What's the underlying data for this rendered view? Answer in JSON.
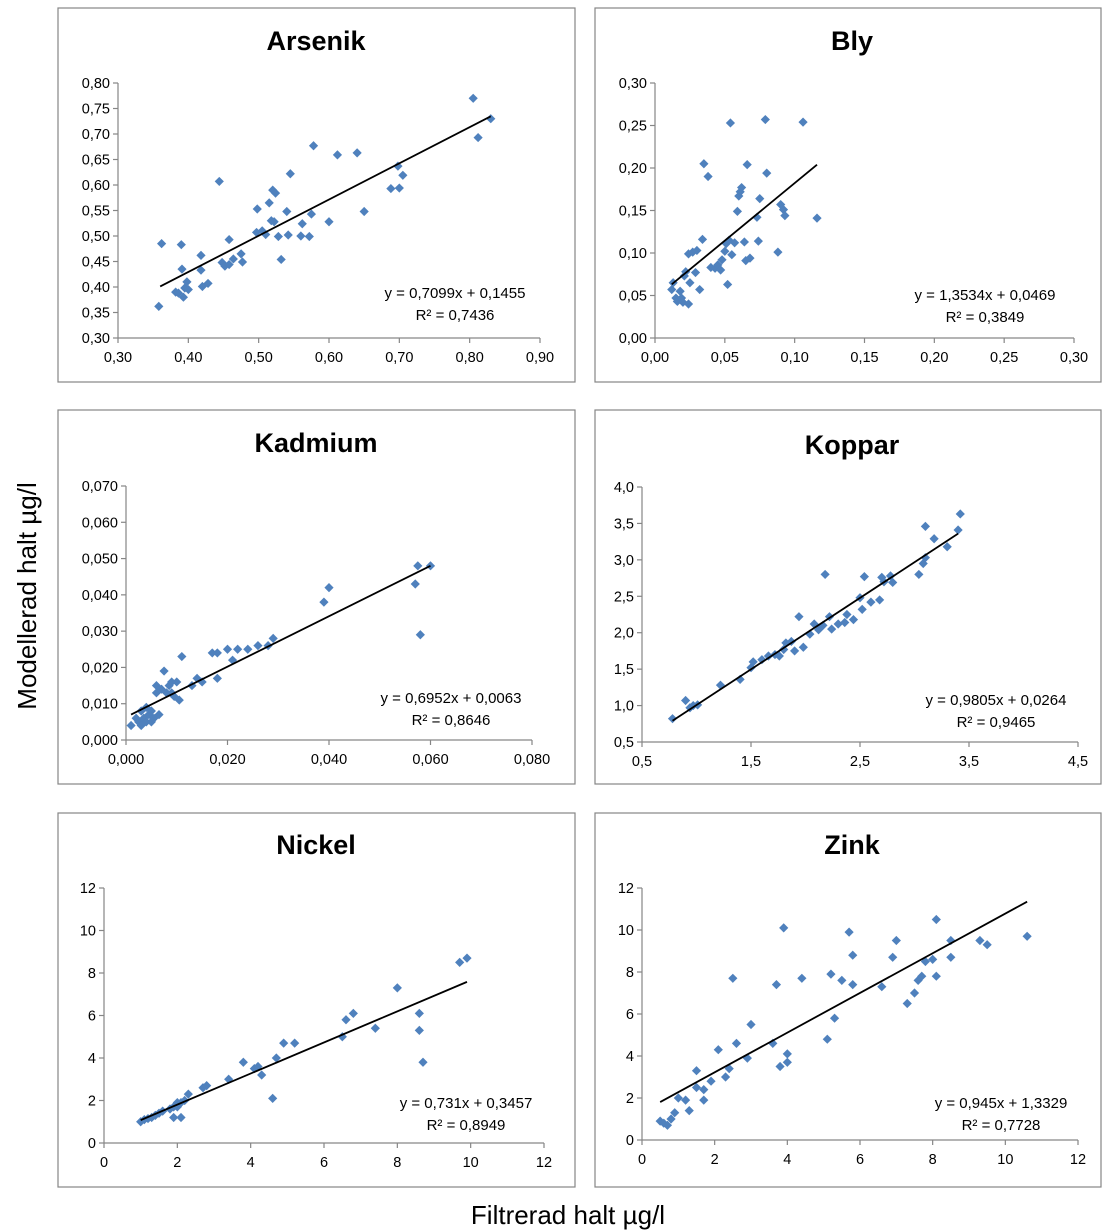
{
  "figure": {
    "ylabel": "Modellerad halt µg/l",
    "xlabel": "Filtrerad halt µg/l"
  },
  "colors": {
    "marker": "#4f81bd",
    "trendline": "#000000",
    "axis": "#868686",
    "frame": "#868686",
    "text": "#000000"
  },
  "chart_data": [
    {
      "type": "scatter",
      "title": "Arsenik",
      "xlim": [
        0.3,
        0.9
      ],
      "ylim": [
        0.3,
        0.8
      ],
      "xticks": [
        "0,30",
        "0,40",
        "0,50",
        "0,60",
        "0,70",
        "0,80",
        "0,90"
      ],
      "yticks": [
        "0,30",
        "0,35",
        "0,40",
        "0,45",
        "0,50",
        "0,55",
        "0,60",
        "0,65",
        "0,70",
        "0,75",
        "0,80"
      ],
      "grid": false,
      "equation": "y = 0,7099x + 0,1455",
      "r2_label": "R² = 0,7436",
      "trendline": {
        "slope": 0.7099,
        "intercept": 0.1455,
        "x_range": [
          0.36,
          0.83
        ]
      },
      "points": [
        [
          0.358,
          0.362
        ],
        [
          0.362,
          0.485
        ],
        [
          0.382,
          0.39
        ],
        [
          0.386,
          0.388
        ],
        [
          0.39,
          0.483
        ],
        [
          0.391,
          0.435
        ],
        [
          0.393,
          0.38
        ],
        [
          0.395,
          0.398
        ],
        [
          0.398,
          0.41
        ],
        [
          0.4,
          0.395
        ],
        [
          0.418,
          0.462
        ],
        [
          0.418,
          0.433
        ],
        [
          0.42,
          0.401
        ],
        [
          0.428,
          0.407
        ],
        [
          0.444,
          0.607
        ],
        [
          0.448,
          0.448
        ],
        [
          0.452,
          0.441
        ],
        [
          0.458,
          0.444
        ],
        [
          0.458,
          0.493
        ],
        [
          0.464,
          0.455
        ],
        [
          0.475,
          0.465
        ],
        [
          0.477,
          0.449
        ],
        [
          0.497,
          0.507
        ],
        [
          0.498,
          0.553
        ],
        [
          0.505,
          0.51
        ],
        [
          0.51,
          0.503
        ],
        [
          0.515,
          0.565
        ],
        [
          0.518,
          0.53
        ],
        [
          0.52,
          0.59
        ],
        [
          0.522,
          0.528
        ],
        [
          0.524,
          0.584
        ],
        [
          0.528,
          0.499
        ],
        [
          0.532,
          0.454
        ],
        [
          0.54,
          0.548
        ],
        [
          0.542,
          0.502
        ],
        [
          0.545,
          0.622
        ],
        [
          0.56,
          0.5
        ],
        [
          0.562,
          0.524
        ],
        [
          0.572,
          0.499
        ],
        [
          0.575,
          0.543
        ],
        [
          0.578,
          0.677
        ],
        [
          0.6,
          0.528
        ],
        [
          0.612,
          0.659
        ],
        [
          0.64,
          0.663
        ],
        [
          0.65,
          0.548
        ],
        [
          0.688,
          0.593
        ],
        [
          0.698,
          0.637
        ],
        [
          0.7,
          0.594
        ],
        [
          0.705,
          0.619
        ],
        [
          0.805,
          0.77
        ],
        [
          0.812,
          0.693
        ],
        [
          0.83,
          0.73
        ]
      ]
    },
    {
      "type": "scatter",
      "title": "Bly",
      "xlim": [
        0.0,
        0.3
      ],
      "ylim": [
        0.0,
        0.3
      ],
      "xticks": [
        "0,00",
        "0,05",
        "0,10",
        "0,15",
        "0,20",
        "0,25",
        "0,30"
      ],
      "yticks": [
        "0,00",
        "0,05",
        "0,10",
        "0,15",
        "0,20",
        "0,25",
        "0,30"
      ],
      "grid": false,
      "equation": "y = 1,3534x + 0,0469",
      "r2_label": "R² = 0,3849",
      "trendline": {
        "slope": 1.3534,
        "intercept": 0.0469,
        "x_range": [
          0.012,
          0.116
        ]
      },
      "points": [
        [
          0.012,
          0.057
        ],
        [
          0.013,
          0.065
        ],
        [
          0.015,
          0.047
        ],
        [
          0.016,
          0.043
        ],
        [
          0.018,
          0.055
        ],
        [
          0.019,
          0.047
        ],
        [
          0.02,
          0.042
        ],
        [
          0.021,
          0.073
        ],
        [
          0.022,
          0.078
        ],
        [
          0.024,
          0.04
        ],
        [
          0.024,
          0.099
        ],
        [
          0.025,
          0.065
        ],
        [
          0.027,
          0.101
        ],
        [
          0.029,
          0.077
        ],
        [
          0.03,
          0.103
        ],
        [
          0.032,
          0.057
        ],
        [
          0.034,
          0.116
        ],
        [
          0.035,
          0.205
        ],
        [
          0.038,
          0.19
        ],
        [
          0.04,
          0.083
        ],
        [
          0.043,
          0.082
        ],
        [
          0.045,
          0.086
        ],
        [
          0.047,
          0.08
        ],
        [
          0.048,
          0.092
        ],
        [
          0.05,
          0.102
        ],
        [
          0.051,
          0.111
        ],
        [
          0.052,
          0.063
        ],
        [
          0.053,
          0.115
        ],
        [
          0.054,
          0.253
        ],
        [
          0.055,
          0.098
        ],
        [
          0.057,
          0.112
        ],
        [
          0.059,
          0.149
        ],
        [
          0.06,
          0.167
        ],
        [
          0.061,
          0.172
        ],
        [
          0.062,
          0.177
        ],
        [
          0.064,
          0.113
        ],
        [
          0.065,
          0.091
        ],
        [
          0.066,
          0.204
        ],
        [
          0.068,
          0.094
        ],
        [
          0.073,
          0.142
        ],
        [
          0.074,
          0.114
        ],
        [
          0.075,
          0.164
        ],
        [
          0.079,
          0.257
        ],
        [
          0.08,
          0.194
        ],
        [
          0.088,
          0.101
        ],
        [
          0.09,
          0.157
        ],
        [
          0.092,
          0.151
        ],
        [
          0.093,
          0.144
        ],
        [
          0.106,
          0.254
        ],
        [
          0.116,
          0.141
        ]
      ]
    },
    {
      "type": "scatter",
      "title": "Kadmium",
      "xlim": [
        0.0,
        0.08
      ],
      "ylim": [
        0.0,
        0.07
      ],
      "xticks": [
        "0,000",
        "0,020",
        "0,040",
        "0,060",
        "0,080"
      ],
      "yticks": [
        "0,000",
        "0,010",
        "0,020",
        "0,030",
        "0,040",
        "0,050",
        "0,060",
        "0,070"
      ],
      "grid": false,
      "equation": "y = 0,6952x + 0,0063",
      "r2_label": "R² = 0,8646",
      "trendline": {
        "slope": 0.6952,
        "intercept": 0.0063,
        "x_range": [
          0.001,
          0.06
        ]
      },
      "points": [
        [
          0.001,
          0.004
        ],
        [
          0.002,
          0.006
        ],
        [
          0.0025,
          0.005
        ],
        [
          0.003,
          0.008
        ],
        [
          0.003,
          0.004
        ],
        [
          0.0035,
          0.006
        ],
        [
          0.004,
          0.005
        ],
        [
          0.004,
          0.009
        ],
        [
          0.0045,
          0.007
        ],
        [
          0.005,
          0.005
        ],
        [
          0.005,
          0.008
        ],
        [
          0.0055,
          0.006
        ],
        [
          0.006,
          0.015
        ],
        [
          0.006,
          0.013
        ],
        [
          0.0065,
          0.007
        ],
        [
          0.007,
          0.014
        ],
        [
          0.0075,
          0.019
        ],
        [
          0.008,
          0.013
        ],
        [
          0.0085,
          0.015
        ],
        [
          0.009,
          0.016
        ],
        [
          0.009,
          0.013
        ],
        [
          0.0095,
          0.012
        ],
        [
          0.01,
          0.016
        ],
        [
          0.0105,
          0.011
        ],
        [
          0.011,
          0.023
        ],
        [
          0.013,
          0.015
        ],
        [
          0.014,
          0.017
        ],
        [
          0.015,
          0.016
        ],
        [
          0.017,
          0.024
        ],
        [
          0.018,
          0.017
        ],
        [
          0.018,
          0.024
        ],
        [
          0.02,
          0.025
        ],
        [
          0.021,
          0.022
        ],
        [
          0.022,
          0.025
        ],
        [
          0.024,
          0.025
        ],
        [
          0.026,
          0.026
        ],
        [
          0.028,
          0.026
        ],
        [
          0.029,
          0.028
        ],
        [
          0.039,
          0.038
        ],
        [
          0.04,
          0.042
        ],
        [
          0.057,
          0.043
        ],
        [
          0.0575,
          0.048
        ],
        [
          0.058,
          0.029
        ],
        [
          0.06,
          0.048
        ]
      ]
    },
    {
      "type": "scatter",
      "title": "Koppar",
      "xlim": [
        0.5,
        4.5
      ],
      "ylim": [
        0.5,
        4.0
      ],
      "xticks": [
        "0,5",
        "1,5",
        "2,5",
        "3,5",
        "4,5"
      ],
      "yticks": [
        "0,5",
        "1,0",
        "1,5",
        "2,0",
        "2,5",
        "3,0",
        "3,5",
        "4,0"
      ],
      "grid": false,
      "equation": "y = 0,9805x + 0,0264",
      "r2_label": "R² = 0,9465",
      "trendline": {
        "slope": 0.9805,
        "intercept": 0.0264,
        "x_range": [
          0.78,
          3.4
        ]
      },
      "points": [
        [
          0.78,
          0.82
        ],
        [
          0.9,
          1.07
        ],
        [
          0.94,
          0.97
        ],
        [
          0.97,
          1.0
        ],
        [
          1.01,
          1.01
        ],
        [
          1.22,
          1.28
        ],
        [
          1.4,
          1.36
        ],
        [
          1.5,
          1.52
        ],
        [
          1.52,
          1.6
        ],
        [
          1.6,
          1.63
        ],
        [
          1.66,
          1.68
        ],
        [
          1.72,
          1.7
        ],
        [
          1.76,
          1.68
        ],
        [
          1.8,
          1.77
        ],
        [
          1.82,
          1.86
        ],
        [
          1.87,
          1.88
        ],
        [
          1.9,
          1.75
        ],
        [
          1.94,
          2.22
        ],
        [
          1.98,
          1.8
        ],
        [
          2.04,
          1.98
        ],
        [
          2.08,
          2.12
        ],
        [
          2.12,
          2.04
        ],
        [
          2.16,
          2.1
        ],
        [
          2.18,
          2.8
        ],
        [
          2.22,
          2.22
        ],
        [
          2.24,
          2.05
        ],
        [
          2.3,
          2.12
        ],
        [
          2.36,
          2.14
        ],
        [
          2.38,
          2.25
        ],
        [
          2.44,
          2.18
        ],
        [
          2.5,
          2.48
        ],
        [
          2.52,
          2.32
        ],
        [
          2.54,
          2.77
        ],
        [
          2.6,
          2.42
        ],
        [
          2.68,
          2.45
        ],
        [
          2.7,
          2.76
        ],
        [
          2.72,
          2.7
        ],
        [
          2.78,
          2.78
        ],
        [
          2.8,
          2.69
        ],
        [
          3.04,
          2.8
        ],
        [
          3.08,
          2.95
        ],
        [
          3.1,
          3.03
        ],
        [
          3.1,
          3.46
        ],
        [
          3.18,
          3.29
        ],
        [
          3.3,
          3.18
        ],
        [
          3.4,
          3.41
        ],
        [
          3.42,
          3.63
        ]
      ]
    },
    {
      "type": "scatter",
      "title": "Nickel",
      "xlim": [
        0,
        12
      ],
      "ylim": [
        0,
        12
      ],
      "xticks": [
        "0",
        "2",
        "4",
        "6",
        "8",
        "10",
        "12"
      ],
      "yticks": [
        "0",
        "2",
        "4",
        "6",
        "8",
        "10",
        "12"
      ],
      "grid": false,
      "equation": "y = 0,731x + 0,3457",
      "r2_label": "R² = 0,8949",
      "trendline": {
        "slope": 0.731,
        "intercept": 0.3457,
        "x_range": [
          1.0,
          9.9
        ]
      },
      "points": [
        [
          1.0,
          1.0
        ],
        [
          1.1,
          1.1
        ],
        [
          1.2,
          1.15
        ],
        [
          1.3,
          1.2
        ],
        [
          1.4,
          1.3
        ],
        [
          1.5,
          1.4
        ],
        [
          1.6,
          1.5
        ],
        [
          1.8,
          1.6
        ],
        [
          1.9,
          1.7
        ],
        [
          1.9,
          1.2
        ],
        [
          2.0,
          1.7
        ],
        [
          2.0,
          1.9
        ],
        [
          2.1,
          1.9
        ],
        [
          2.1,
          1.2
        ],
        [
          2.2,
          2.0
        ],
        [
          2.3,
          2.3
        ],
        [
          2.7,
          2.6
        ],
        [
          2.8,
          2.7
        ],
        [
          3.4,
          3.0
        ],
        [
          3.8,
          3.8
        ],
        [
          4.1,
          3.5
        ],
        [
          4.2,
          3.6
        ],
        [
          4.3,
          3.2
        ],
        [
          4.6,
          2.1
        ],
        [
          4.7,
          4.0
        ],
        [
          4.9,
          4.7
        ],
        [
          5.2,
          4.7
        ],
        [
          6.5,
          5.0
        ],
        [
          6.6,
          5.8
        ],
        [
          6.8,
          6.1
        ],
        [
          7.4,
          5.4
        ],
        [
          8.0,
          7.3
        ],
        [
          8.6,
          6.1
        ],
        [
          8.6,
          5.3
        ],
        [
          8.7,
          3.8
        ],
        [
          9.7,
          8.5
        ],
        [
          9.9,
          8.7
        ]
      ]
    },
    {
      "type": "scatter",
      "title": "Zink",
      "xlim": [
        0,
        12
      ],
      "ylim": [
        0,
        12
      ],
      "xticks": [
        "0",
        "2",
        "4",
        "6",
        "8",
        "10",
        "12"
      ],
      "yticks": [
        "0",
        "2",
        "4",
        "6",
        "8",
        "10",
        "12"
      ],
      "grid": false,
      "equation": "y = 0,945x + 1,3329",
      "r2_label": "R² = 0,7728",
      "trendline": {
        "slope": 0.945,
        "intercept": 1.3329,
        "x_range": [
          0.5,
          10.6
        ]
      },
      "points": [
        [
          0.5,
          0.9
        ],
        [
          0.6,
          0.8
        ],
        [
          0.7,
          0.7
        ],
        [
          0.8,
          1.0
        ],
        [
          0.9,
          1.3
        ],
        [
          1.0,
          2.0
        ],
        [
          1.2,
          1.9
        ],
        [
          1.3,
          1.4
        ],
        [
          1.5,
          3.3
        ],
        [
          1.5,
          2.5
        ],
        [
          1.7,
          1.9
        ],
        [
          1.7,
          2.4
        ],
        [
          1.9,
          2.8
        ],
        [
          2.1,
          4.3
        ],
        [
          2.3,
          3.0
        ],
        [
          2.4,
          3.4
        ],
        [
          2.5,
          7.7
        ],
        [
          2.6,
          4.6
        ],
        [
          2.9,
          3.9
        ],
        [
          3.0,
          5.5
        ],
        [
          3.6,
          4.6
        ],
        [
          3.7,
          7.4
        ],
        [
          3.8,
          3.5
        ],
        [
          3.9,
          10.1
        ],
        [
          4.0,
          3.7
        ],
        [
          4.0,
          4.1
        ],
        [
          4.4,
          7.7
        ],
        [
          5.1,
          4.8
        ],
        [
          5.2,
          7.9
        ],
        [
          5.3,
          5.8
        ],
        [
          5.5,
          7.6
        ],
        [
          5.7,
          9.9
        ],
        [
          5.8,
          8.8
        ],
        [
          5.8,
          7.4
        ],
        [
          6.6,
          7.3
        ],
        [
          6.9,
          8.7
        ],
        [
          7.0,
          9.5
        ],
        [
          7.3,
          6.5
        ],
        [
          7.5,
          7.0
        ],
        [
          7.6,
          7.6
        ],
        [
          7.7,
          7.8
        ],
        [
          7.8,
          8.5
        ],
        [
          8.0,
          8.6
        ],
        [
          8.1,
          7.8
        ],
        [
          8.1,
          10.5
        ],
        [
          8.5,
          8.7
        ],
        [
          8.5,
          9.5
        ],
        [
          9.3,
          9.5
        ],
        [
          9.5,
          9.3
        ],
        [
          10.6,
          9.7
        ]
      ]
    }
  ]
}
